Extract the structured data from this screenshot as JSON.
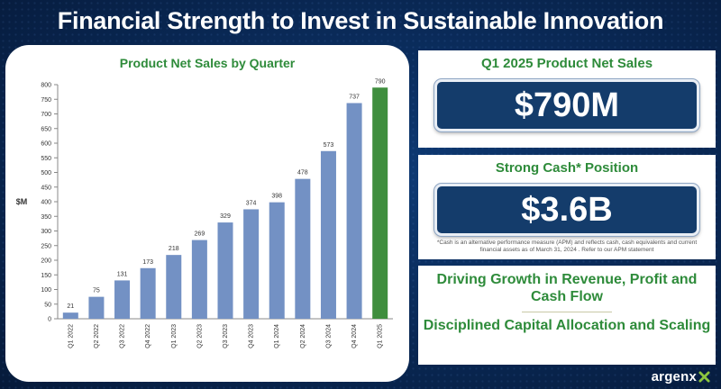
{
  "page": {
    "title": "Financial Strength to Invest in Sustainable Innovation"
  },
  "chart_data": {
    "type": "bar",
    "title": "Product Net Sales by Quarter",
    "ylabel": "$M",
    "xlabel": "",
    "ylim": [
      0,
      800
    ],
    "yticks": [
      0,
      50,
      100,
      150,
      200,
      250,
      300,
      350,
      400,
      450,
      500,
      550,
      600,
      650,
      700,
      750,
      800
    ],
    "grid": false,
    "categories": [
      "Q1 2022",
      "Q2 2022",
      "Q3 2022",
      "Q4 2022",
      "Q1 2023",
      "Q2 2023",
      "Q3 2023",
      "Q4 2023",
      "Q1 2024",
      "Q2 2024",
      "Q3 2024",
      "Q4 2024",
      "Q1 2025"
    ],
    "values": [
      21,
      75,
      131,
      173,
      218,
      269,
      329,
      374,
      398,
      478,
      573,
      737,
      790
    ],
    "colors": {
      "default": "#7391c4",
      "highlight": "#3f8e3e"
    },
    "highlight_index": 12
  },
  "panels": {
    "net_sales": {
      "title": "Q1 2025 Product Net Sales",
      "value": "$790M"
    },
    "cash": {
      "title": "Strong Cash* Position",
      "value": "$3.6B",
      "footnote": "*Cash is an alternative performance measure (APM) and reflects cash, cash equivalents and current financial assets as of March 31, 2024 . Refer to our APM statement"
    },
    "growth": {
      "line1": "Driving Growth in Revenue, Profit and Cash Flow",
      "line2": "Disciplined Capital Allocation and Scaling"
    }
  },
  "brand": {
    "logo_text": "argenx",
    "logo_icon": "argenx-x-mark-icon"
  }
}
